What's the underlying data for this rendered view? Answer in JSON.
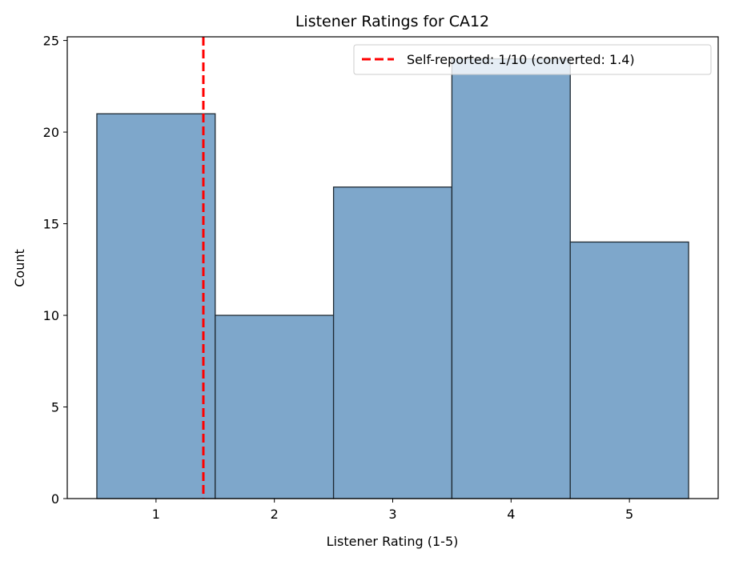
{
  "chart_data": {
    "type": "bar",
    "title": "Listener Ratings for CA12",
    "xlabel": "Listener Rating (1-5)",
    "ylabel": "Count",
    "categories": [
      1,
      2,
      3,
      4,
      5
    ],
    "values": [
      21,
      10,
      17,
      24,
      14
    ],
    "bin_width": 1,
    "xlim": [
      0.25,
      5.75
    ],
    "ylim": [
      0,
      25.2
    ],
    "xticks": [
      1,
      2,
      3,
      4,
      5
    ],
    "yticks": [
      0,
      5,
      10,
      15,
      20,
      25
    ],
    "grid": false,
    "bar_color": "#7ea7cb",
    "bar_edge_color": "#1f2a33",
    "reference_line": {
      "x": 1.4,
      "color": "#ff0000",
      "style": "dashed",
      "label": "Self-reported: 1/10 (converted: 1.4)"
    },
    "legend": {
      "placement": "top-right",
      "entries": [
        "Self-reported: 1/10 (converted: 1.4)"
      ]
    }
  }
}
